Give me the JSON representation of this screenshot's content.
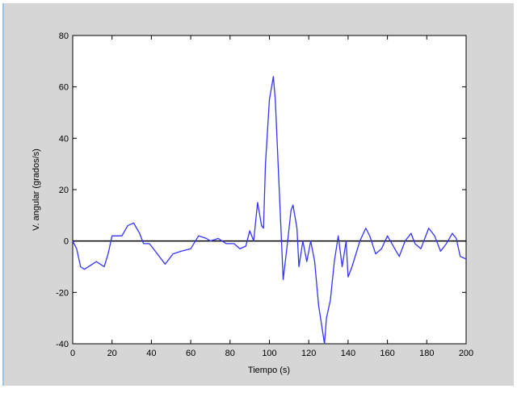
{
  "chart_data": {
    "type": "line",
    "xlabel": "Tiempo (s)",
    "ylabel": "V. angular (grados/s)",
    "x": [
      0,
      2,
      4,
      6,
      10,
      12,
      14,
      16,
      18,
      20,
      25,
      28,
      31,
      34,
      36,
      39,
      42,
      47,
      51,
      55,
      60,
      64,
      68,
      70,
      74,
      78,
      82,
      85,
      88,
      90,
      92,
      94,
      96,
      97,
      98,
      100,
      102,
      103,
      105,
      107,
      109,
      111,
      112,
      114,
      115,
      117,
      119,
      121,
      123,
      125,
      128,
      129,
      131,
      133,
      135,
      137,
      139,
      140,
      142,
      146,
      149,
      151,
      154,
      157,
      160,
      163,
      166,
      169,
      172,
      174,
      177,
      181,
      184,
      187,
      190,
      193,
      195,
      197,
      200
    ],
    "series": [
      {
        "name": null,
        "color": "#3333ff",
        "values": [
          0,
          -3,
          -10,
          -11,
          -9,
          -8,
          -9,
          -10,
          -5,
          2,
          2,
          6,
          7,
          3,
          -1,
          -1,
          -4,
          -9,
          -5,
          -4,
          -3,
          2,
          1,
          0,
          1,
          -1,
          -1,
          -3,
          -2,
          4,
          0,
          15,
          6,
          5,
          30,
          55,
          64,
          55,
          20,
          -15,
          -2,
          12,
          14,
          5,
          -10,
          0,
          -8,
          0,
          -8,
          -25,
          -40,
          -30,
          -23,
          -8,
          2,
          -10,
          0,
          -14,
          -10,
          0,
          5,
          2,
          -5,
          -3,
          2,
          -2,
          -6,
          0,
          3,
          -1,
          -3,
          5,
          2,
          -4,
          -1,
          3,
          1,
          -6,
          -7
        ]
      }
    ],
    "reference_line": 0,
    "reference_color": "#000000",
    "xlim": [
      0,
      200
    ],
    "xticks": [
      0,
      20,
      40,
      60,
      80,
      100,
      120,
      140,
      160,
      180,
      200
    ],
    "ylim": [
      -40,
      80
    ],
    "yticks": [
      -40,
      -20,
      0,
      20,
      40,
      60,
      80
    ],
    "grid": false
  }
}
